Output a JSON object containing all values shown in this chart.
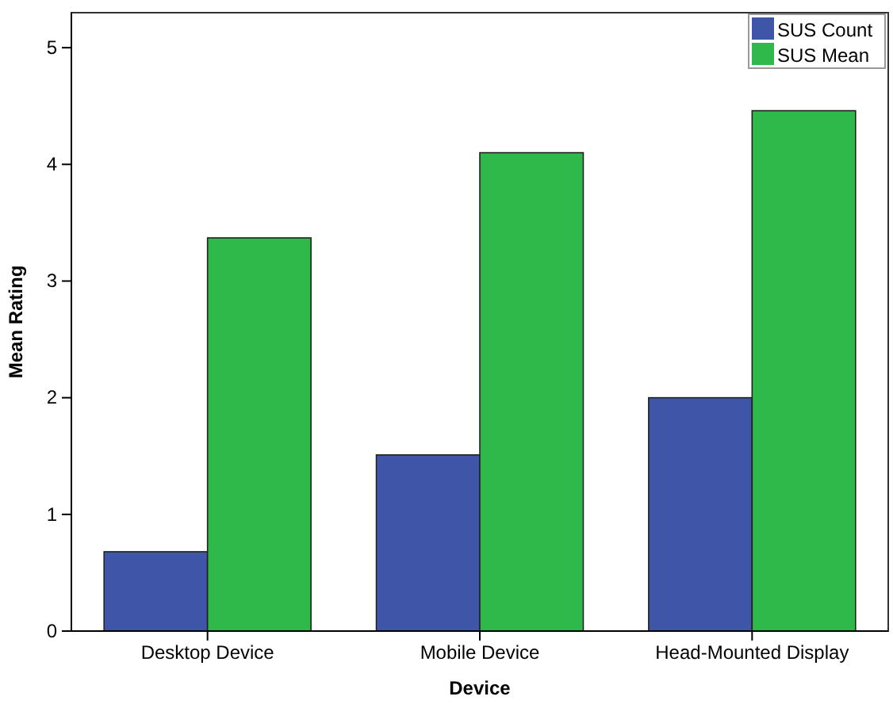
{
  "chart_data": {
    "type": "bar",
    "xlabel": "Device",
    "ylabel": "Mean Rating",
    "categories": [
      "Desktop Device",
      "Mobile Device",
      "Head-Mounted Display"
    ],
    "series": [
      {
        "name": "SUS Count",
        "color": "#3f56a8",
        "values": [
          0.68,
          1.51,
          2.0
        ]
      },
      {
        "name": "SUS Mean",
        "color": "#2fb94a",
        "values": [
          3.37,
          4.1,
          4.46
        ]
      }
    ],
    "ylim": [
      0,
      5.3
    ],
    "yticks": [
      0,
      1,
      2,
      3,
      4,
      5
    ],
    "grid": false,
    "legend": "top right"
  }
}
